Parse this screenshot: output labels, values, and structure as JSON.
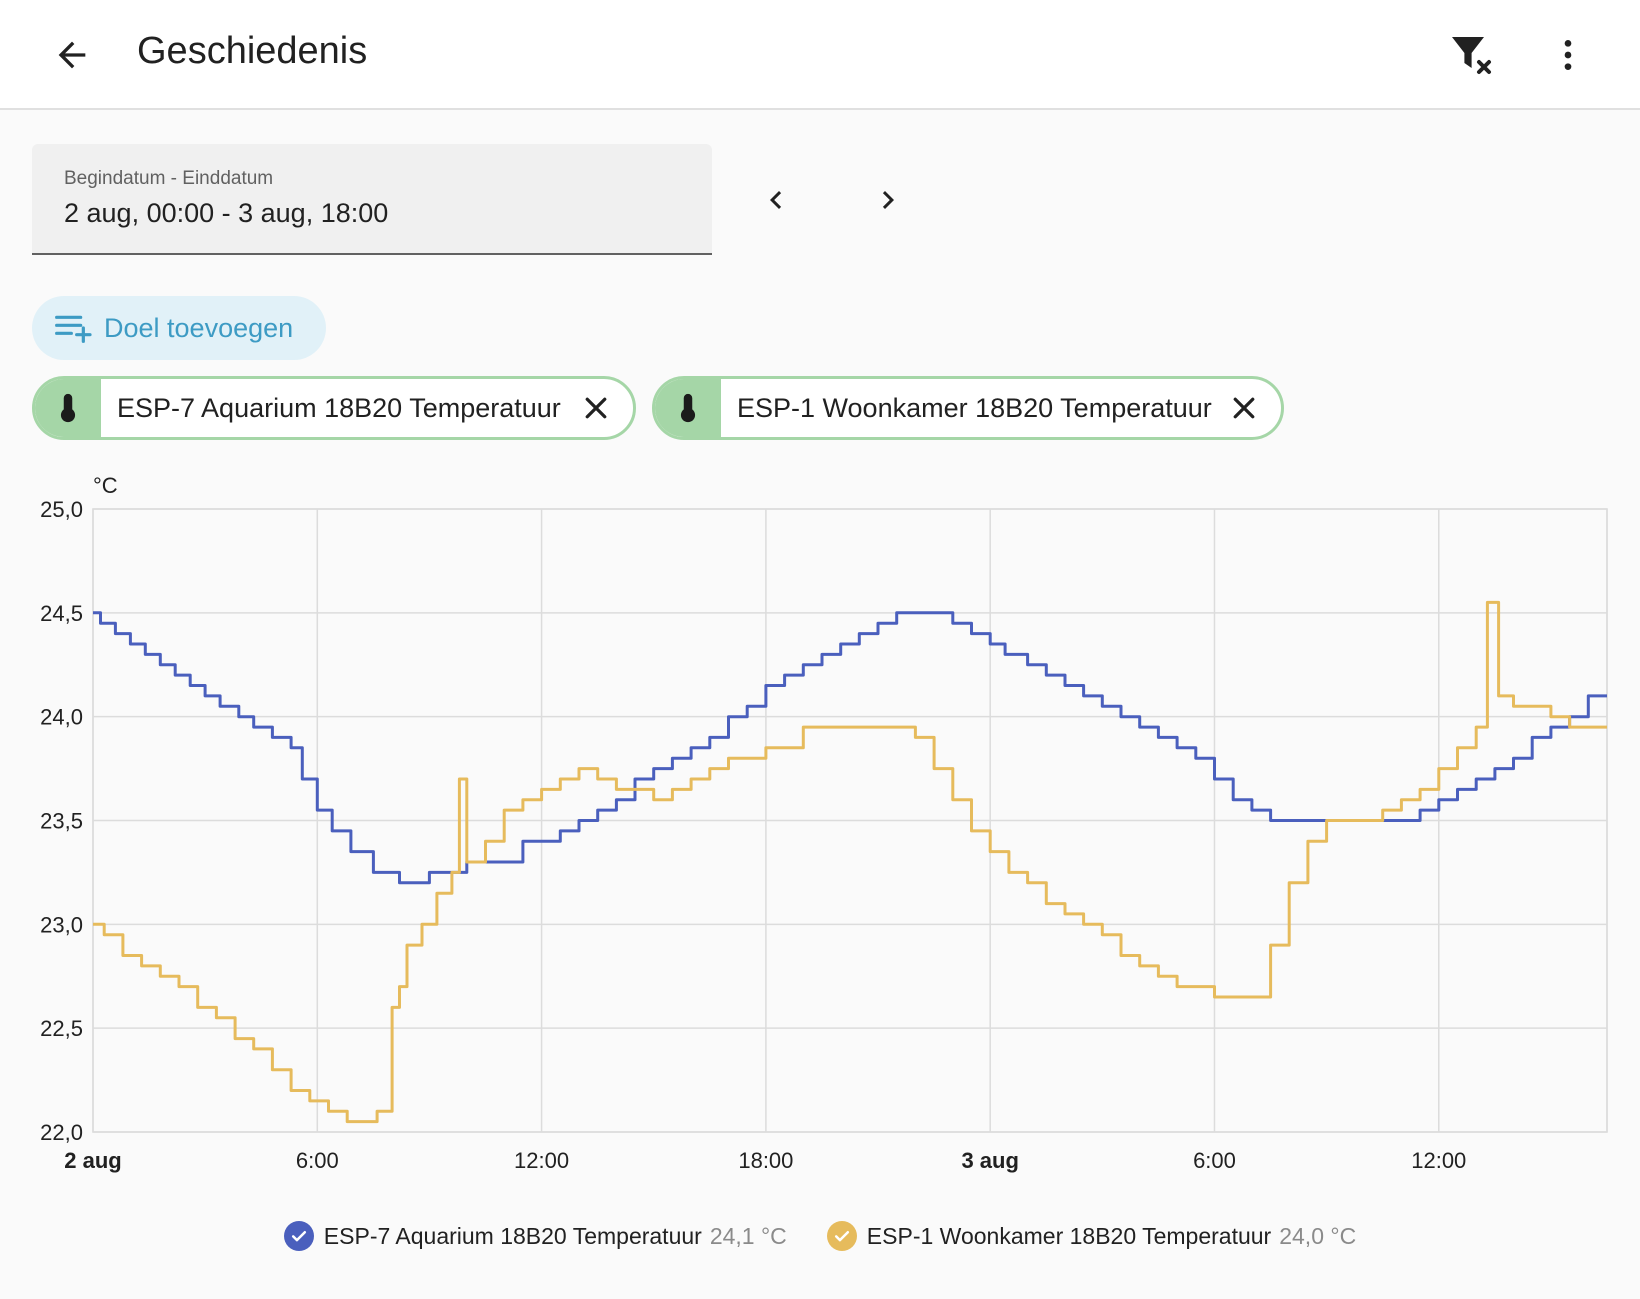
{
  "header": {
    "title": "Geschiedenis",
    "back_icon": "arrow-left-icon",
    "filter_icon": "filter-remove-icon",
    "menu_icon": "dots-vertical-icon"
  },
  "date_range": {
    "label": "Begindatum - Einddatum",
    "value": "2 aug, 00:00 - 3 aug, 18:00"
  },
  "add_target": {
    "label": "Doel toevoegen",
    "icon": "playlist-plus-icon"
  },
  "targets": [
    {
      "label": "ESP-7 Aquarium 18B20 Temperatuur",
      "icon": "thermometer-icon"
    },
    {
      "label": "ESP-1 Woonkamer 18B20 Temperatuur",
      "icon": "thermometer-icon"
    }
  ],
  "colors": {
    "series_1": "#4a5fbd",
    "series_2": "#e6bb5c",
    "chip_border": "#a5d6a7",
    "accent": "#3d9bc4"
  },
  "legend": [
    {
      "name": "ESP-7 Aquarium 18B20 Temperatuur",
      "value": "24,1 °C"
    },
    {
      "name": "ESP-1 Woonkamer 18B20 Temperatuur",
      "value": "24,0 °C"
    }
  ],
  "chart_data": {
    "type": "line",
    "ylabel": "°C",
    "ylim": [
      22.0,
      25.0
    ],
    "xlim_hours": [
      0,
      40.5
    ],
    "yticks": [
      "22,0",
      "22,5",
      "23,0",
      "23,5",
      "24,0",
      "24,5",
      "25,0"
    ],
    "xticks": [
      {
        "label": "2 aug",
        "hour": 0,
        "bold": true
      },
      {
        "label": "6:00",
        "hour": 6,
        "bold": false
      },
      {
        "label": "12:00",
        "hour": 12,
        "bold": false
      },
      {
        "label": "18:00",
        "hour": 18,
        "bold": false
      },
      {
        "label": "3 aug",
        "hour": 24,
        "bold": true
      },
      {
        "label": "6:00",
        "hour": 30,
        "bold": false
      },
      {
        "label": "12:00",
        "hour": 36,
        "bold": false
      }
    ],
    "grid": true,
    "series": [
      {
        "name": "ESP-7 Aquarium 18B20 Temperatuur",
        "step": true,
        "x": [
          0,
          0.2,
          0.6,
          1.0,
          1.4,
          1.8,
          2.2,
          2.6,
          3.0,
          3.4,
          3.9,
          4.3,
          4.8,
          5.3,
          5.6,
          6.0,
          6.4,
          6.9,
          7.5,
          8.2,
          8.5,
          9.0,
          10.0,
          11.0,
          11.5,
          12.5,
          13.0,
          13.5,
          14.0,
          14.5,
          15.0,
          15.5,
          16.0,
          16.5,
          17.0,
          17.5,
          18.0,
          18.5,
          19.0,
          19.5,
          20.0,
          20.5,
          21.0,
          21.5,
          22.5,
          23.0,
          23.5,
          24.0,
          24.4,
          25.0,
          25.5,
          26.0,
          26.5,
          27.0,
          27.5,
          28.0,
          28.5,
          29.0,
          29.5,
          30.0,
          30.5,
          31.0,
          31.5,
          32.0,
          33.0,
          34.0,
          35.0,
          35.5,
          36.0,
          36.5,
          37.0,
          37.5,
          38.0,
          38.5,
          39.0,
          39.5,
          40.0,
          40.5
        ],
        "values": [
          24.5,
          24.45,
          24.4,
          24.35,
          24.3,
          24.25,
          24.2,
          24.15,
          24.1,
          24.05,
          24.0,
          23.95,
          23.9,
          23.85,
          23.7,
          23.55,
          23.45,
          23.35,
          23.25,
          23.2,
          23.2,
          23.25,
          23.3,
          23.3,
          23.4,
          23.45,
          23.5,
          23.55,
          23.6,
          23.7,
          23.75,
          23.8,
          23.85,
          23.9,
          24.0,
          24.05,
          24.15,
          24.2,
          24.25,
          24.3,
          24.35,
          24.4,
          24.45,
          24.5,
          24.5,
          24.45,
          24.4,
          24.35,
          24.3,
          24.25,
          24.2,
          24.15,
          24.1,
          24.05,
          24.0,
          23.95,
          23.9,
          23.85,
          23.8,
          23.7,
          23.6,
          23.55,
          23.5,
          23.5,
          23.5,
          23.5,
          23.5,
          23.55,
          23.6,
          23.65,
          23.7,
          23.75,
          23.8,
          23.9,
          23.95,
          24.0,
          24.1,
          24.1
        ]
      },
      {
        "name": "ESP-1 Woonkamer 18B20 Temperatuur",
        "step": true,
        "x": [
          0,
          0.3,
          0.8,
          1.3,
          1.8,
          2.3,
          2.8,
          3.3,
          3.8,
          4.3,
          4.8,
          5.3,
          5.8,
          6.3,
          6.8,
          7.2,
          7.6,
          8.0,
          8.2,
          8.4,
          8.8,
          9.2,
          9.6,
          9.8,
          10.0,
          10.5,
          11.0,
          11.5,
          12.0,
          12.5,
          13.0,
          13.5,
          14.0,
          14.5,
          15.0,
          15.5,
          16.0,
          16.5,
          17.0,
          18.0,
          19.0,
          20.0,
          21.0,
          22.0,
          22.5,
          23.0,
          23.5,
          24.0,
          24.5,
          25.0,
          25.5,
          26.0,
          26.5,
          27.0,
          27.5,
          28.0,
          28.5,
          29.0,
          29.5,
          30.0,
          30.5,
          31.0,
          31.5,
          32.0,
          32.5,
          33.0,
          33.5,
          34.0,
          34.5,
          35.0,
          35.5,
          36.0,
          36.5,
          37.0,
          37.3,
          37.6,
          38.0,
          38.5,
          39.0,
          39.5,
          40.0,
          40.5
        ],
        "values": [
          23.0,
          22.95,
          22.85,
          22.8,
          22.75,
          22.7,
          22.6,
          22.55,
          22.45,
          22.4,
          22.3,
          22.2,
          22.15,
          22.1,
          22.05,
          22.05,
          22.1,
          22.6,
          22.7,
          22.9,
          23.0,
          23.15,
          23.25,
          23.7,
          23.3,
          23.4,
          23.55,
          23.6,
          23.65,
          23.7,
          23.75,
          23.7,
          23.65,
          23.65,
          23.6,
          23.65,
          23.7,
          23.75,
          23.8,
          23.85,
          23.95,
          23.95,
          23.95,
          23.9,
          23.75,
          23.6,
          23.45,
          23.35,
          23.25,
          23.2,
          23.1,
          23.05,
          23.0,
          22.95,
          22.85,
          22.8,
          22.75,
          22.7,
          22.7,
          22.65,
          22.65,
          22.65,
          22.9,
          23.2,
          23.4,
          23.5,
          23.5,
          23.5,
          23.55,
          23.6,
          23.65,
          23.75,
          23.85,
          23.95,
          24.55,
          24.1,
          24.05,
          24.05,
          24.0,
          23.95,
          23.95,
          23.95
        ]
      }
    ]
  }
}
